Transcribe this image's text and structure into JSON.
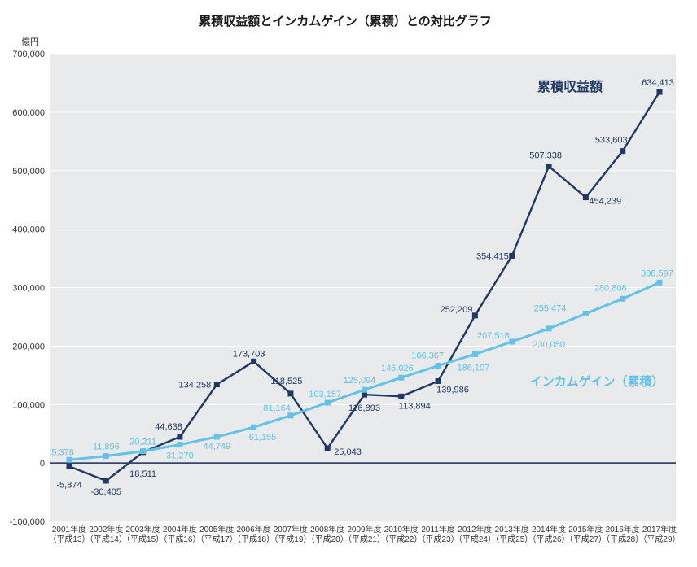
{
  "chart_data": {
    "type": "line",
    "title": "累積収益額とインカムゲイン（累積）との対比グラフ",
    "unit_label": "億円",
    "plot_bg": "#e9eaeb",
    "grid": true,
    "gridline_color": "#ffffff",
    "zero_line_color": "#1b2d52",
    "y_axis": {
      "min": -100000,
      "max": 700000,
      "step": 100000
    },
    "x_categories": [
      {
        "year": "2001年度",
        "era": "（平成13）"
      },
      {
        "year": "2002年度",
        "era": "（平成14）"
      },
      {
        "year": "2003年度",
        "era": "（平成15）"
      },
      {
        "year": "2004年度",
        "era": "（平成16）"
      },
      {
        "year": "2005年度",
        "era": "（平成17）"
      },
      {
        "year": "2006年度",
        "era": "（平成18）"
      },
      {
        "year": "2007年度",
        "era": "（平成19）"
      },
      {
        "year": "2008年度",
        "era": "（平成20）"
      },
      {
        "year": "2009年度",
        "era": "（平成21）"
      },
      {
        "year": "2010年度",
        "era": "（平成22）"
      },
      {
        "year": "2011年度",
        "era": "（平成23）"
      },
      {
        "year": "2012年度",
        "era": "（平成24）"
      },
      {
        "year": "2013年度",
        "era": "（平成25）"
      },
      {
        "year": "2014年度",
        "era": "（平成26）"
      },
      {
        "year": "2015年度",
        "era": "（平成27）"
      },
      {
        "year": "2016年度",
        "era": "（平成28）"
      },
      {
        "year": "2017年度",
        "era": "（平成29）"
      }
    ],
    "series": [
      {
        "name": "累積収益額",
        "color": "#1f3864",
        "marker": "square",
        "marker_size": 7,
        "line_width": 2.4,
        "values": [
          -5874,
          -30405,
          18511,
          44638,
          134258,
          173703,
          118525,
          25043,
          116893,
          113894,
          139986,
          252209,
          354415,
          507338,
          454239,
          533603,
          634413
        ],
        "label_offsets": [
          [
            0,
            26,
            "m"
          ],
          [
            0,
            17,
            "m"
          ],
          [
            0,
            30,
            "m"
          ],
          [
            3,
            -9,
            "e"
          ],
          [
            -7,
            4,
            "e"
          ],
          [
            -6,
            -6,
            "m"
          ],
          [
            -5,
            -12,
            "m"
          ],
          [
            8,
            8,
            "s"
          ],
          [
            0,
            20,
            "m"
          ],
          [
            -3,
            15,
            "s"
          ],
          [
            -2,
            14,
            "s"
          ],
          [
            -3,
            -4,
            "e"
          ],
          [
            -4,
            4,
            "e"
          ],
          [
            -4,
            -10,
            "m"
          ],
          [
            4,
            8,
            "s"
          ],
          [
            -14,
            -10,
            "m"
          ],
          [
            -2,
            -8,
            "m"
          ]
        ]
      },
      {
        "name": "インカムゲイン（累積）",
        "color": "#64c2e8",
        "marker": "square",
        "marker_size": 7,
        "line_width": 3,
        "values": [
          5378,
          11896,
          20211,
          31270,
          44749,
          61155,
          81164,
          103157,
          125094,
          146026,
          166367,
          186107,
          207518,
          230050,
          255474,
          280808,
          308597
        ],
        "label_offsets": [
          [
            -8,
            -6,
            "m"
          ],
          [
            0,
            -8,
            "m"
          ],
          [
            0,
            -8,
            "m"
          ],
          [
            0,
            17,
            "m"
          ],
          [
            0,
            15,
            "m"
          ],
          [
            -6,
            16,
            "s"
          ],
          [
            0,
            -6,
            "e"
          ],
          [
            -3,
            -7,
            "m"
          ],
          [
            -6,
            -8,
            "m"
          ],
          [
            -5,
            -8,
            "m"
          ],
          [
            -13,
            -9,
            "m"
          ],
          [
            -2,
            20,
            "m"
          ],
          [
            -3,
            -4,
            "e"
          ],
          [
            0,
            23,
            "m"
          ],
          [
            -24,
            -3,
            "e"
          ],
          [
            -15,
            -10,
            "m"
          ],
          [
            -3,
            -8,
            "m"
          ]
        ]
      }
    ]
  }
}
